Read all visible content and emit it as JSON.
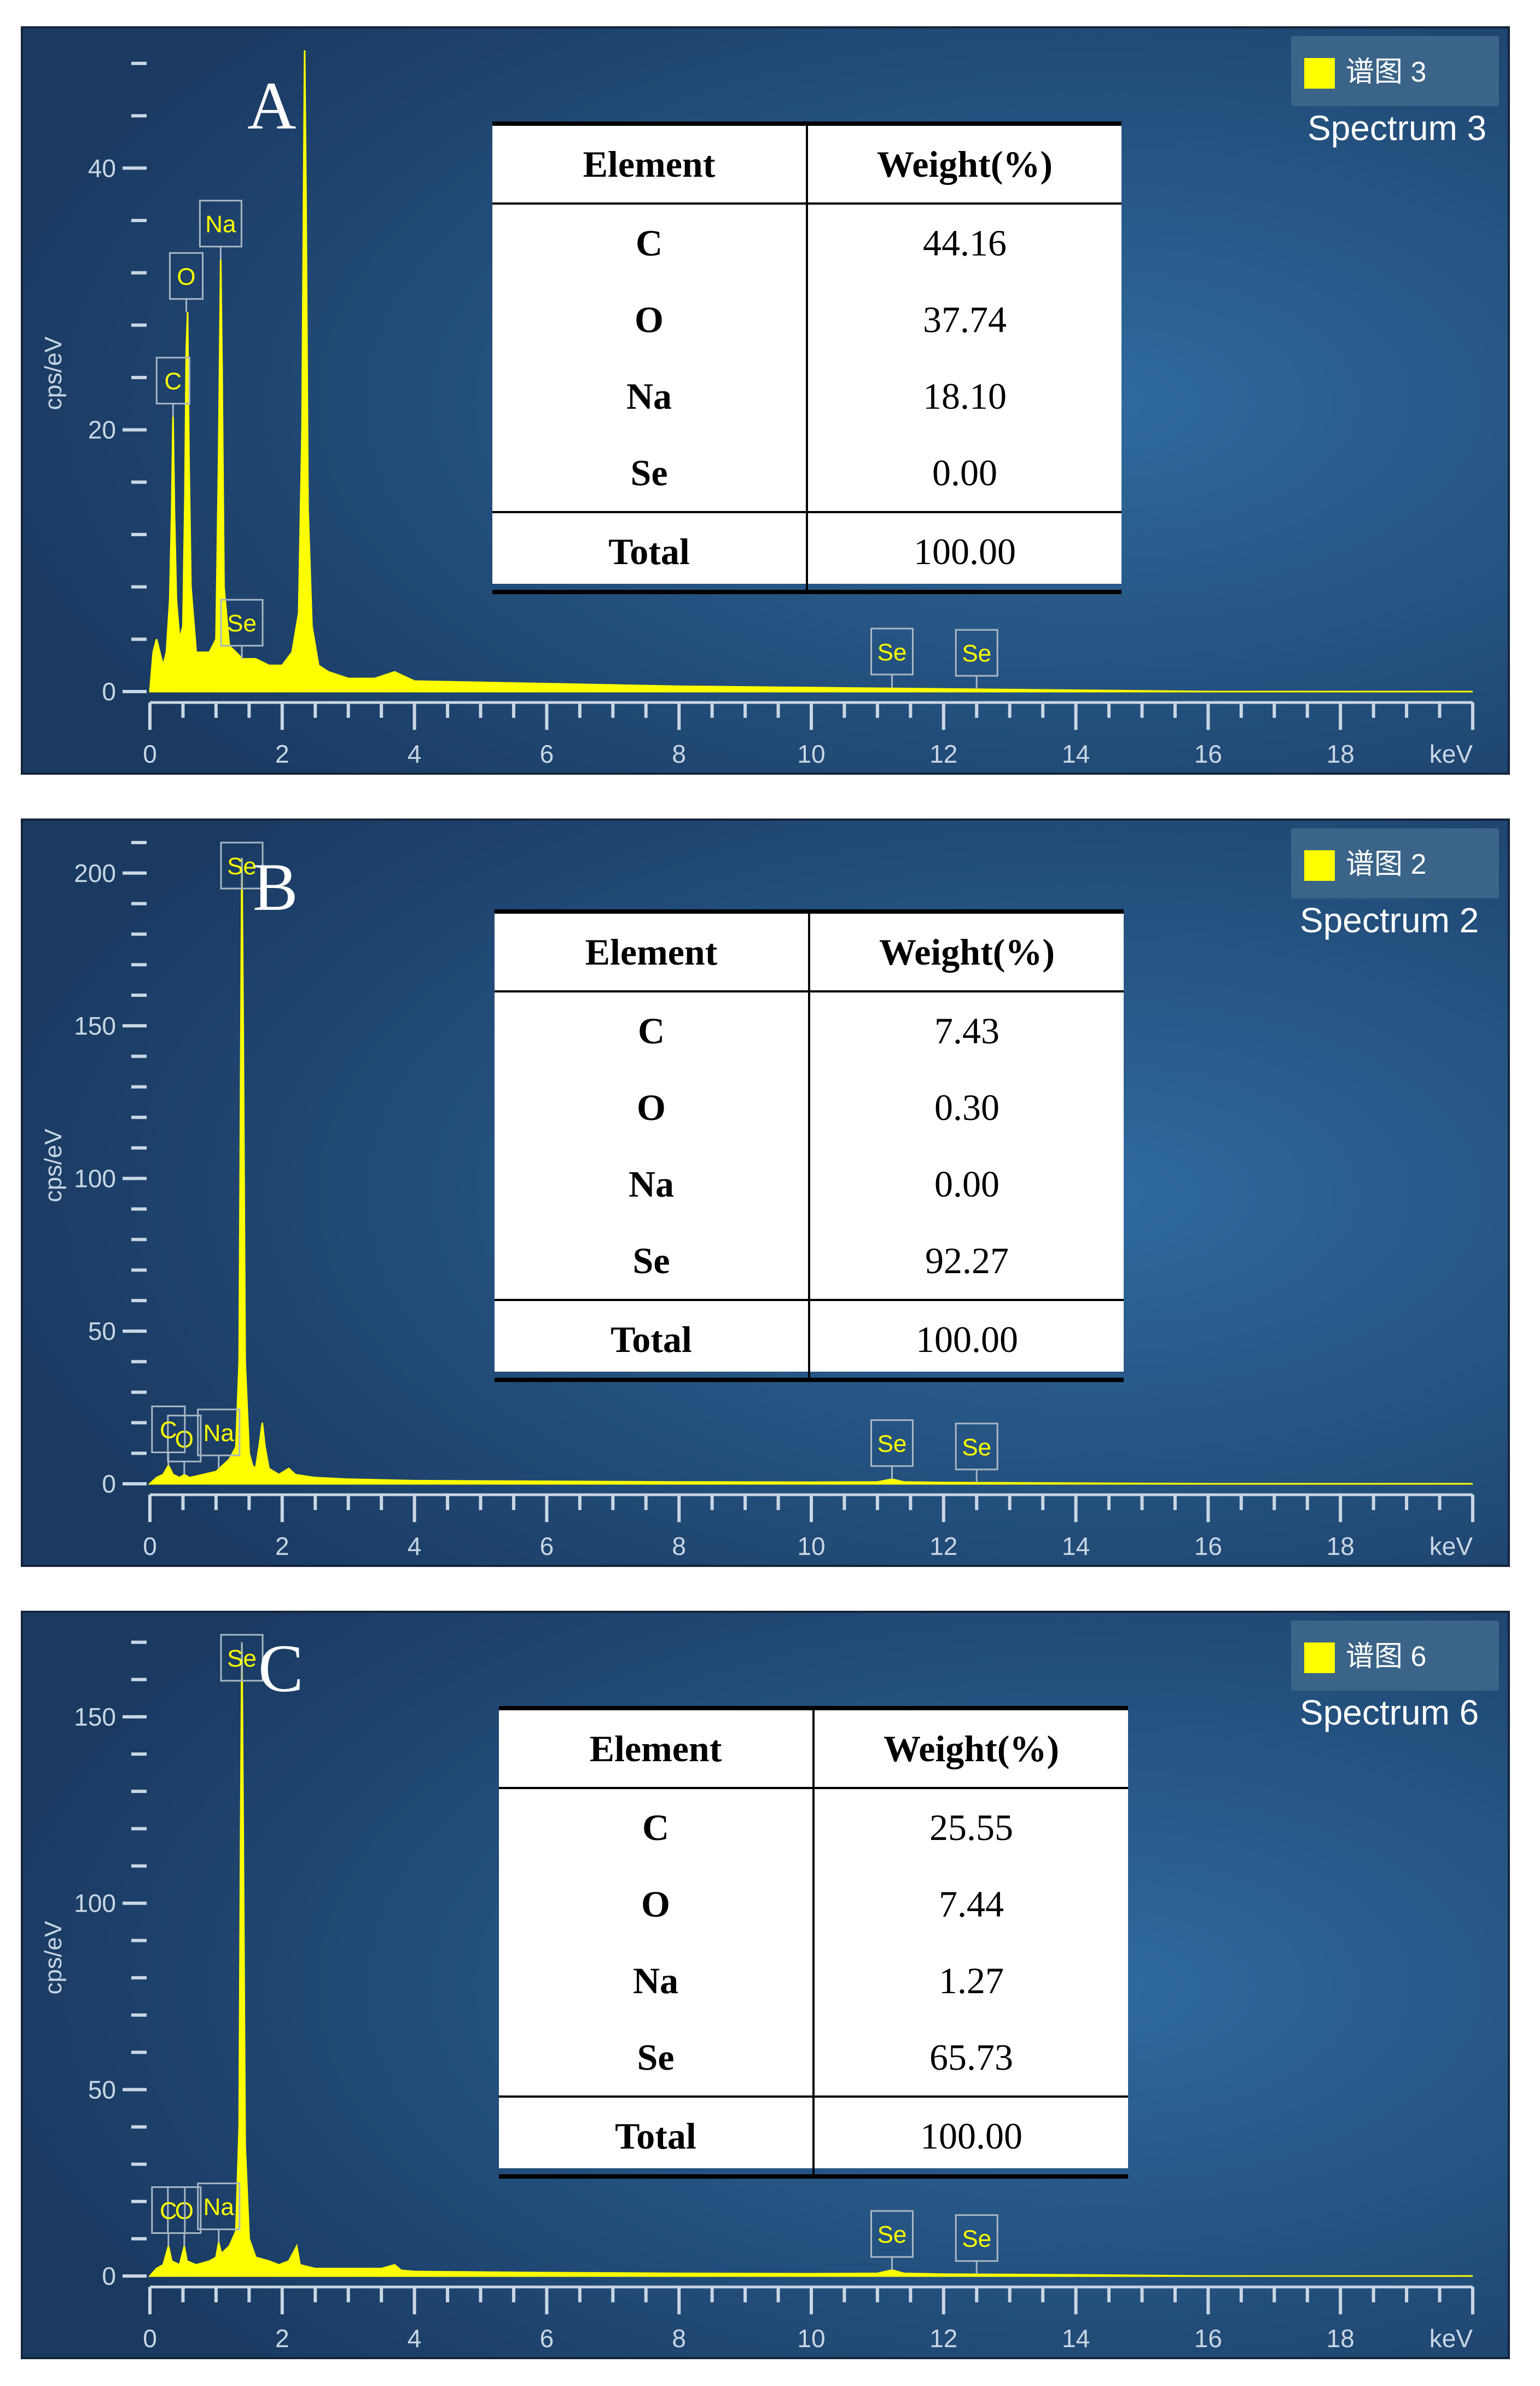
{
  "chart_data": [
    {
      "type": "line",
      "panel_letter": "A",
      "legend_name": "谱图 3",
      "spectrum_label": "Spectrum 3",
      "ylabel": "cps/eV",
      "xunit": "keV",
      "xlim": [
        0,
        20
      ],
      "ylim": [
        0,
        49
      ],
      "xticks": [
        0,
        2,
        4,
        6,
        8,
        10,
        12,
        14,
        16,
        18
      ],
      "yticks": [
        0,
        20,
        40
      ],
      "series": [
        {
          "values_keV_cps": [
            [
              0.0,
              0
            ],
            [
              0.05,
              3
            ],
            [
              0.1,
              4
            ],
            [
              0.15,
              3
            ],
            [
              0.2,
              2
            ],
            [
              0.25,
              3
            ],
            [
              0.3,
              7
            ],
            [
              0.33,
              14
            ],
            [
              0.35,
              21
            ],
            [
              0.37,
              14
            ],
            [
              0.4,
              7
            ],
            [
              0.45,
              4
            ],
            [
              0.5,
              5
            ],
            [
              0.53,
              15
            ],
            [
              0.55,
              26
            ],
            [
              0.57,
              29
            ],
            [
              0.59,
              18
            ],
            [
              0.62,
              8
            ],
            [
              0.7,
              3
            ],
            [
              0.8,
              3
            ],
            [
              0.9,
              3
            ],
            [
              1.0,
              4
            ],
            [
              1.04,
              18
            ],
            [
              1.07,
              33
            ],
            [
              1.09,
              25
            ],
            [
              1.12,
              8
            ],
            [
              1.2,
              3.5
            ],
            [
              1.3,
              3
            ],
            [
              1.4,
              2.5
            ],
            [
              1.5,
              2.5
            ],
            [
              1.6,
              2.5
            ],
            [
              1.8,
              2
            ],
            [
              2.0,
              2
            ],
            [
              2.15,
              3
            ],
            [
              2.25,
              6
            ],
            [
              2.3,
              20
            ],
            [
              2.32,
              35
            ],
            [
              2.34,
              49
            ],
            [
              2.36,
              38
            ],
            [
              2.39,
              14
            ],
            [
              2.45,
              5
            ],
            [
              2.55,
              2
            ],
            [
              2.7,
              1.5
            ],
            [
              3.0,
              1
            ],
            [
              3.4,
              1
            ],
            [
              3.7,
              1.5
            ],
            [
              4.0,
              0.8
            ],
            [
              5.0,
              0.7
            ],
            [
              6.0,
              0.6
            ],
            [
              8.0,
              0.4
            ],
            [
              10.0,
              0.3
            ],
            [
              12.0,
              0.2
            ],
            [
              14.0,
              0.1
            ],
            [
              16.0,
              0
            ],
            [
              20.0,
              0
            ]
          ]
        }
      ],
      "annotations": [
        {
          "label": "C",
          "x": 0.35,
          "y": 21
        },
        {
          "label": "O",
          "x": 0.55,
          "y": 29
        },
        {
          "label": "Na",
          "x": 1.07,
          "y": 33
        },
        {
          "label": "Se",
          "x": 1.39,
          "y": 2.5
        },
        {
          "label": "Se",
          "x": 11.22,
          "y": 0.3
        },
        {
          "label": "Se",
          "x": 12.5,
          "y": 0.2
        }
      ],
      "table": {
        "headers": [
          "Element",
          "Weight(%)"
        ],
        "rows": [
          [
            "C",
            "44.16"
          ],
          [
            "O",
            "37.74"
          ],
          [
            "Na",
            "18.10"
          ],
          [
            "Se",
            "0.00"
          ]
        ],
        "total": [
          "Total",
          "100.00"
        ]
      }
    },
    {
      "type": "line",
      "panel_letter": "B",
      "legend_name": "谱图 2",
      "spectrum_label": "Spectrum 2",
      "ylabel": "cps/eV",
      "xunit": "keV",
      "xlim": [
        0,
        20
      ],
      "ylim": [
        0,
        210
      ],
      "xticks": [
        0,
        2,
        4,
        6,
        8,
        10,
        12,
        14,
        16,
        18
      ],
      "yticks": [
        0,
        50,
        100,
        150,
        200
      ],
      "series": [
        {
          "values_keV_cps": [
            [
              0.0,
              0
            ],
            [
              0.1,
              2
            ],
            [
              0.2,
              3
            ],
            [
              0.28,
              6
            ],
            [
              0.35,
              3
            ],
            [
              0.45,
              2
            ],
            [
              0.52,
              3
            ],
            [
              0.6,
              2
            ],
            [
              0.8,
              3
            ],
            [
              1.0,
              4
            ],
            [
              1.1,
              6
            ],
            [
              1.2,
              8
            ],
            [
              1.3,
              12
            ],
            [
              1.35,
              40
            ],
            [
              1.37,
              120
            ],
            [
              1.39,
              205
            ],
            [
              1.41,
              150
            ],
            [
              1.44,
              40
            ],
            [
              1.5,
              10
            ],
            [
              1.55,
              6
            ],
            [
              1.6,
              5
            ],
            [
              1.65,
              12
            ],
            [
              1.7,
              20
            ],
            [
              1.74,
              12
            ],
            [
              1.8,
              5
            ],
            [
              1.95,
              3
            ],
            [
              2.1,
              5
            ],
            [
              2.2,
              3
            ],
            [
              2.5,
              2
            ],
            [
              3.0,
              1.5
            ],
            [
              4.0,
              1
            ],
            [
              6.0,
              0.8
            ],
            [
              8.0,
              0.6
            ],
            [
              10.0,
              0.5
            ],
            [
              11.0,
              0.6
            ],
            [
              11.22,
              1.5
            ],
            [
              11.4,
              0.6
            ],
            [
              12.0,
              0.4
            ],
            [
              14.0,
              0.2
            ],
            [
              16.0,
              0
            ],
            [
              20.0,
              0
            ]
          ]
        }
      ],
      "annotations": [
        {
          "label": "Se",
          "x": 1.39,
          "y": 205
        },
        {
          "label": "O",
          "x": 0.52,
          "y": 3
        },
        {
          "label": "C",
          "x": 0.28,
          "y": 6
        },
        {
          "label": "Na",
          "x": 1.04,
          "y": 5
        },
        {
          "label": "Se",
          "x": 11.22,
          "y": 1.5
        },
        {
          "label": "Se",
          "x": 12.5,
          "y": 0.4
        }
      ],
      "table": {
        "headers": [
          "Element",
          "Weight(%)"
        ],
        "rows": [
          [
            "C",
            "7.43"
          ],
          [
            "O",
            "0.30"
          ],
          [
            "Na",
            "0.00"
          ],
          [
            "Se",
            "92.27"
          ]
        ],
        "total": [
          "Total",
          "100.00"
        ]
      }
    },
    {
      "type": "line",
      "panel_letter": "C",
      "legend_name": "谱图 6",
      "spectrum_label": "Spectrum 6",
      "ylabel": "cps/eV",
      "xunit": "keV",
      "xlim": [
        0,
        20
      ],
      "ylim": [
        0,
        172
      ],
      "xticks": [
        0,
        2,
        4,
        6,
        8,
        10,
        12,
        14,
        16,
        18
      ],
      "yticks": [
        0,
        50,
        100,
        150
      ],
      "series": [
        {
          "values_keV_cps": [
            [
              0.0,
              0
            ],
            [
              0.1,
              2
            ],
            [
              0.2,
              3
            ],
            [
              0.28,
              8
            ],
            [
              0.33,
              4
            ],
            [
              0.45,
              3
            ],
            [
              0.52,
              8
            ],
            [
              0.56,
              4
            ],
            [
              0.7,
              3
            ],
            [
              0.9,
              4
            ],
            [
              1.0,
              5
            ],
            [
              1.04,
              9
            ],
            [
              1.08,
              6
            ],
            [
              1.2,
              8
            ],
            [
              1.3,
              12
            ],
            [
              1.35,
              40
            ],
            [
              1.37,
              110
            ],
            [
              1.39,
              170
            ],
            [
              1.41,
              120
            ],
            [
              1.44,
              35
            ],
            [
              1.5,
              10
            ],
            [
              1.6,
              5
            ],
            [
              1.8,
              4
            ],
            [
              1.95,
              3
            ],
            [
              2.1,
              4
            ],
            [
              2.22,
              8
            ],
            [
              2.27,
              3
            ],
            [
              2.5,
              2
            ],
            [
              3.0,
              2
            ],
            [
              3.5,
              2
            ],
            [
              3.7,
              3
            ],
            [
              3.8,
              1.5
            ],
            [
              4.0,
              1.2
            ],
            [
              6.0,
              0.9
            ],
            [
              8.0,
              0.7
            ],
            [
              10.0,
              0.6
            ],
            [
              11.0,
              0.7
            ],
            [
              11.22,
              1.6
            ],
            [
              11.4,
              0.7
            ],
            [
              12.0,
              0.5
            ],
            [
              14.0,
              0.3
            ],
            [
              16.0,
              0
            ],
            [
              20.0,
              0
            ]
          ]
        }
      ],
      "annotations": [
        {
          "label": "Se",
          "x": 1.39,
          "y": 170
        },
        {
          "label": "O",
          "x": 0.52,
          "y": 8
        },
        {
          "label": "C",
          "x": 0.28,
          "y": 8
        },
        {
          "label": "Na",
          "x": 1.04,
          "y": 9
        },
        {
          "label": "Se",
          "x": 11.22,
          "y": 1.6
        },
        {
          "label": "Se",
          "x": 12.5,
          "y": 0.5
        }
      ],
      "table": {
        "headers": [
          "Element",
          "Weight(%)"
        ],
        "rows": [
          [
            "C",
            "25.55"
          ],
          [
            "O",
            "7.44"
          ],
          [
            "Na",
            "1.27"
          ],
          [
            "Se",
            "65.73"
          ]
        ],
        "total": [
          "Total",
          "100.00"
        ]
      }
    }
  ]
}
